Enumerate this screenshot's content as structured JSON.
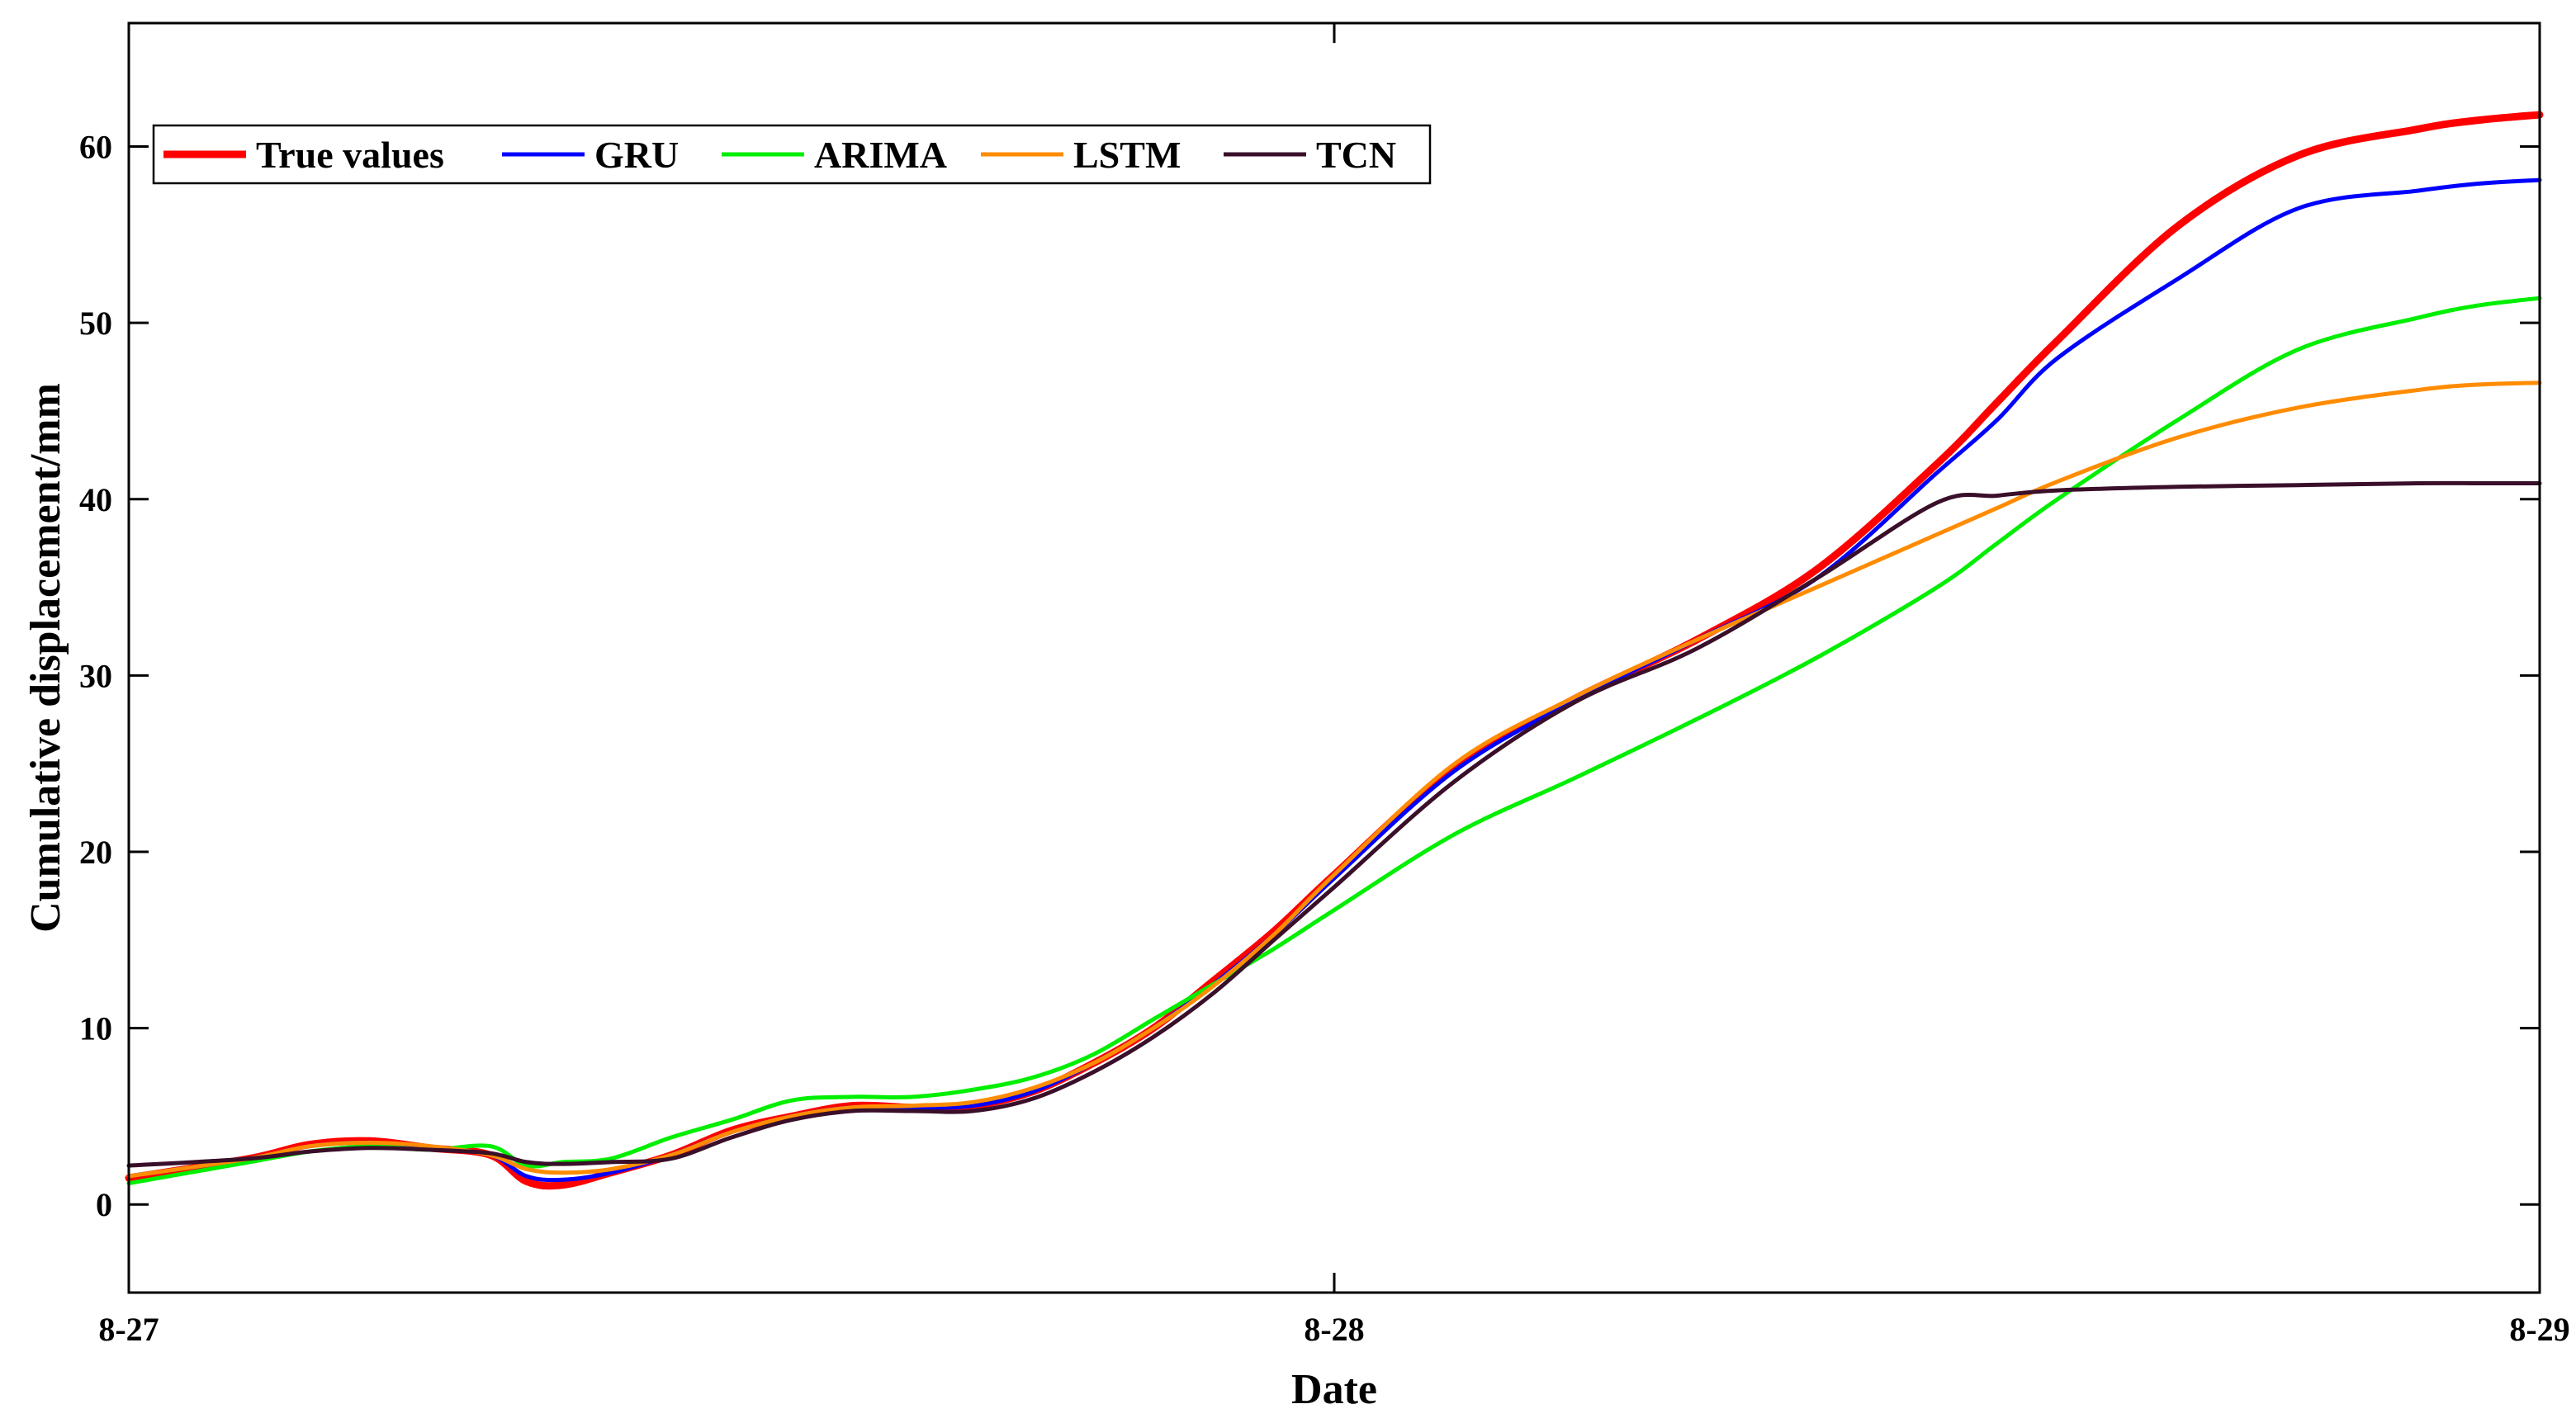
{
  "chart_data": {
    "type": "line",
    "title": "",
    "xlabel": "Date",
    "ylabel": "Cumulative displacement/mm",
    "x_tick_labels": [
      "8-27",
      "8-28",
      "8-29"
    ],
    "y_ticks": [
      0,
      10,
      20,
      30,
      40,
      50,
      60
    ],
    "y_tick_labels": [
      "0",
      "10",
      "20",
      "30",
      "40",
      "50",
      "60"
    ],
    "xlim": [
      0,
      2
    ],
    "ylim": [
      -5,
      67
    ],
    "x_unit": "days after 8-27",
    "grid": false,
    "legend_position": "top-left",
    "series": [
      {
        "name": "True values",
        "color": "#ff0000",
        "x": [
          0,
          0.1,
          0.15,
          0.2,
          0.25,
          0.3,
          0.33,
          0.36,
          0.4,
          0.45,
          0.5,
          0.55,
          0.6,
          0.65,
          0.7,
          0.75,
          0.8,
          0.85,
          0.9,
          0.95,
          1.0,
          1.1,
          1.2,
          1.3,
          1.4,
          1.5,
          1.55,
          1.6,
          1.7,
          1.8,
          1.9,
          1.95,
          2.0
        ],
        "values": [
          1.5,
          2.6,
          3.4,
          3.6,
          3.2,
          2.8,
          1.3,
          1.1,
          1.8,
          2.8,
          4.2,
          5.0,
          5.6,
          5.5,
          5.6,
          6.4,
          8.0,
          10.0,
          12.7,
          15.5,
          18.7,
          24.8,
          28.7,
          32.0,
          36.0,
          42.0,
          45.5,
          49.0,
          55.5,
          59.5,
          61.0,
          61.5,
          61.8
        ]
      },
      {
        "name": "GRU",
        "color": "#0000ff",
        "x": [
          0,
          0.1,
          0.15,
          0.2,
          0.25,
          0.3,
          0.33,
          0.36,
          0.4,
          0.45,
          0.5,
          0.55,
          0.6,
          0.65,
          0.7,
          0.75,
          0.8,
          0.85,
          0.9,
          0.95,
          1.0,
          1.1,
          1.2,
          1.3,
          1.4,
          1.5,
          1.55,
          1.6,
          1.7,
          1.8,
          1.9,
          1.95,
          2.0
        ],
        "values": [
          1.6,
          2.6,
          3.3,
          3.5,
          3.2,
          2.8,
          1.6,
          1.4,
          1.8,
          2.8,
          4.1,
          5.0,
          5.5,
          5.5,
          5.6,
          6.4,
          8.0,
          10.0,
          12.5,
          15.3,
          18.5,
          24.6,
          28.6,
          32.0,
          35.5,
          41.5,
          44.5,
          48.0,
          52.5,
          56.5,
          57.5,
          57.9,
          58.1
        ]
      },
      {
        "name": "ARIMA",
        "color": "#00ee00",
        "x": [
          0,
          0.1,
          0.15,
          0.2,
          0.25,
          0.3,
          0.33,
          0.36,
          0.4,
          0.45,
          0.5,
          0.55,
          0.6,
          0.65,
          0.7,
          0.75,
          0.8,
          0.85,
          0.9,
          0.95,
          1.0,
          1.1,
          1.2,
          1.3,
          1.4,
          1.5,
          1.55,
          1.6,
          1.7,
          1.8,
          1.9,
          1.95,
          2.0
        ],
        "values": [
          1.2,
          2.4,
          3.0,
          3.3,
          3.1,
          3.3,
          2.2,
          2.4,
          2.6,
          3.8,
          4.8,
          5.9,
          6.1,
          6.1,
          6.5,
          7.2,
          8.5,
          10.5,
          12.5,
          14.5,
          16.7,
          21.0,
          24.2,
          27.5,
          31.0,
          35.0,
          37.5,
          40.0,
          44.5,
          48.5,
          50.3,
          51.0,
          51.4
        ]
      },
      {
        "name": "LSTM",
        "color": "#ff8c00",
        "x": [
          0,
          0.1,
          0.15,
          0.2,
          0.25,
          0.3,
          0.33,
          0.36,
          0.4,
          0.45,
          0.5,
          0.55,
          0.6,
          0.65,
          0.7,
          0.75,
          0.8,
          0.85,
          0.9,
          0.95,
          1.0,
          1.1,
          1.2,
          1.3,
          1.4,
          1.5,
          1.55,
          1.6,
          1.7,
          1.8,
          1.9,
          1.95,
          2.0
        ],
        "values": [
          1.6,
          2.6,
          3.3,
          3.5,
          3.3,
          2.8,
          2.0,
          1.8,
          2.0,
          2.8,
          4.1,
          5.0,
          5.5,
          5.6,
          5.8,
          6.6,
          8.0,
          10.0,
          12.4,
          15.3,
          18.7,
          25.0,
          28.8,
          32.0,
          35.0,
          38.0,
          39.5,
          41.0,
          43.5,
          45.2,
          46.2,
          46.5,
          46.6
        ]
      },
      {
        "name": "TCN",
        "color": "#3a0f2a",
        "x": [
          0,
          0.1,
          0.15,
          0.2,
          0.25,
          0.3,
          0.33,
          0.36,
          0.4,
          0.45,
          0.5,
          0.55,
          0.6,
          0.65,
          0.7,
          0.75,
          0.8,
          0.85,
          0.9,
          0.95,
          1.0,
          1.1,
          1.2,
          1.3,
          1.4,
          1.5,
          1.55,
          1.6,
          1.7,
          1.8,
          1.9,
          1.95,
          2.0
        ],
        "values": [
          2.2,
          2.6,
          3.0,
          3.2,
          3.1,
          2.9,
          2.4,
          2.3,
          2.4,
          2.6,
          3.8,
          4.8,
          5.3,
          5.3,
          5.3,
          6.0,
          7.5,
          9.5,
          12.0,
          15.0,
          18.0,
          24.0,
          28.5,
          31.5,
          35.5,
          39.8,
          40.2,
          40.5,
          40.7,
          40.8,
          40.9,
          40.9,
          40.9
        ]
      }
    ]
  }
}
